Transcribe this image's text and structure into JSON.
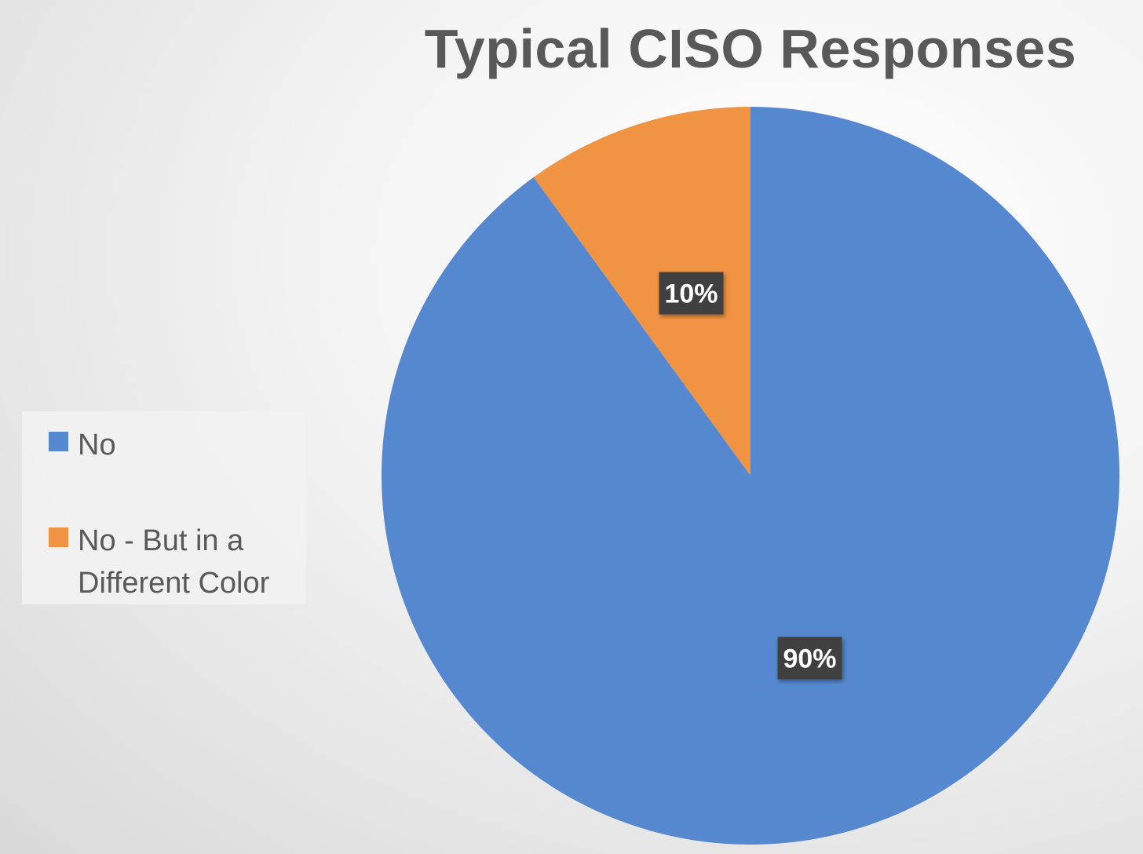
{
  "chart_data": {
    "type": "pie",
    "title": "Typical CISO Responses",
    "categories": [
      "No",
      "No - But in a Different Color"
    ],
    "values": [
      90,
      10
    ],
    "value_labels": [
      "90%",
      "10%"
    ],
    "colors": [
      "#5588cf",
      "#f09342"
    ],
    "legend_position": "left"
  }
}
